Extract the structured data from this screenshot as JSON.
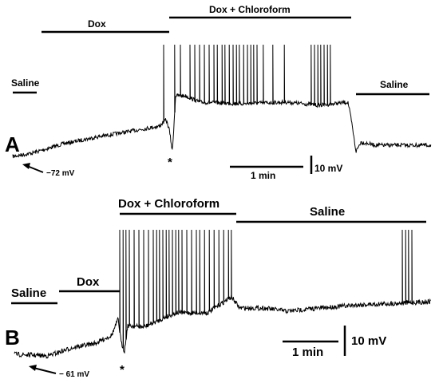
{
  "panel_a": {
    "letter": "A",
    "label_saline_left": "Saline",
    "label_dox": "Dox",
    "label_dox_chloroform": "Dox + Chloroform",
    "label_saline_right": "Saline",
    "star": "*",
    "resting_potential": "−72 mV",
    "scale_time": "1 min",
    "scale_voltage": "10 mV"
  },
  "panel_b": {
    "letter": "B",
    "label_saline_left": "Saline",
    "label_dox": "Dox",
    "label_dox_chloroform": "Dox + Chloroform",
    "label_saline_right": "Saline",
    "star": "*",
    "resting_potential": "− 61 mV",
    "scale_time": "1 min",
    "scale_voltage": "10 mV"
  }
}
